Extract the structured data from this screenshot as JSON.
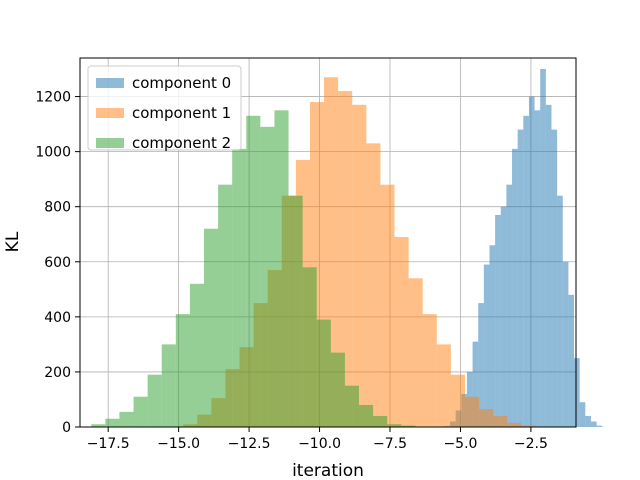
{
  "chart_data": {
    "type": "histogram",
    "title": "",
    "xlabel": "iteration",
    "ylabel": "KL",
    "xlim": [
      -18.5,
      -0.9
    ],
    "ylim": [
      0,
      1340
    ],
    "xticks": [
      -17.5,
      -15.0,
      -12.5,
      -10.0,
      -7.5,
      -5.0,
      -2.5
    ],
    "xtick_labels": [
      "−17.5",
      "−15.0",
      "−12.5",
      "−10.0",
      "−7.5",
      "−5.0",
      "−2.5"
    ],
    "yticks": [
      0,
      200,
      400,
      600,
      800,
      1000,
      1200
    ],
    "ytick_labels": [
      "0",
      "200",
      "400",
      "600",
      "800",
      "1000",
      "1200"
    ],
    "grid": true,
    "legend_position": "top-left",
    "alpha": 0.5,
    "series": [
      {
        "name": "component 0",
        "color": "#1f77b4",
        "bin_start": -5.57,
        "bin_width": 0.2,
        "counts": [
          3,
          20,
          60,
          120,
          200,
          310,
          450,
          590,
          660,
          770,
          800,
          880,
          1010,
          1080,
          1130,
          1200,
          1150,
          1300,
          1170,
          1080,
          840,
          600,
          480,
          250,
          90,
          40,
          20,
          5
        ]
      },
      {
        "name": "component 1",
        "color": "#ff7f0e",
        "bin_start": -14.84,
        "bin_width": 0.5,
        "counts": [
          10,
          45,
          105,
          210,
          290,
          450,
          570,
          840,
          970,
          1180,
          1270,
          1220,
          1170,
          1030,
          880,
          690,
          540,
          410,
          300,
          190,
          110,
          65,
          40,
          15,
          5
        ]
      },
      {
        "name": "component 2",
        "color": "#2ca02c",
        "bin_start": -18.1,
        "bin_width": 0.5,
        "counts": [
          10,
          30,
          55,
          110,
          190,
          300,
          410,
          520,
          720,
          880,
          1010,
          1130,
          1090,
          1150,
          840,
          580,
          390,
          270,
          150,
          80,
          40,
          10,
          5
        ]
      }
    ]
  }
}
